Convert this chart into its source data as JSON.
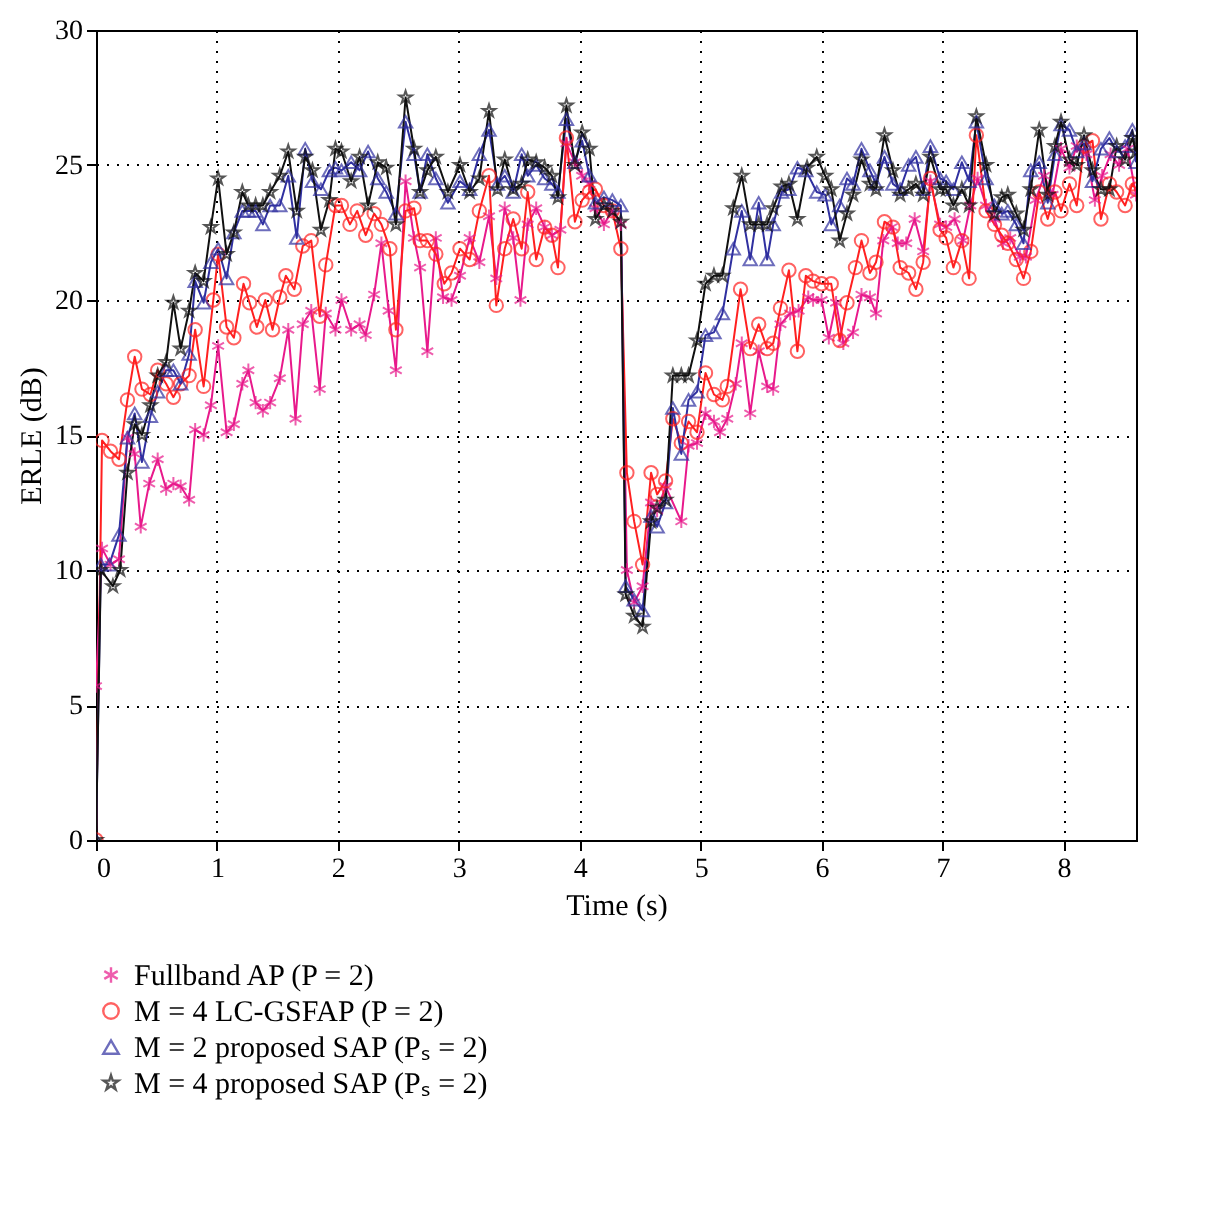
{
  "chart_data": {
    "type": "line",
    "xlabel": "Time (s)",
    "ylabel": "ERLE (dB)",
    "xlim": [
      0,
      8.6
    ],
    "xticks": [
      0,
      1,
      2,
      3,
      4,
      5,
      6,
      7,
      8
    ],
    "ylim": [
      0,
      30
    ],
    "yticks": [
      0,
      5,
      10,
      15,
      20,
      25,
      30
    ],
    "grid": true,
    "legend": "bottom",
    "line_style": "solid",
    "series": [
      {
        "name": "Fullband AP (P = 2)",
        "color": "#e8198b",
        "marker": "cross",
        "x": [
          0,
          0.05,
          0.12,
          0.19,
          0.26,
          0.32,
          0.37,
          0.44,
          0.51,
          0.58,
          0.64,
          0.7,
          0.77,
          0.82,
          0.89,
          0.95,
          1.01,
          1.08,
          1.14,
          1.21,
          1.26,
          1.32,
          1.38,
          1.44,
          1.52,
          1.59,
          1.65,
          1.71,
          1.78,
          1.85,
          1.9,
          1.98,
          2.03,
          2.11,
          2.18,
          2.23,
          2.3,
          2.36,
          2.42,
          2.48,
          2.56,
          2.63,
          2.68,
          2.74,
          2.81,
          2.87,
          2.94,
          3.01,
          3.09,
          3.17,
          3.25,
          3.31,
          3.38,
          3.45,
          3.51,
          3.57,
          3.64,
          3.71,
          3.77,
          3.84,
          3.89,
          3.96,
          4.02,
          4.08,
          4.13,
          4.2,
          4.27,
          4.34,
          4.39,
          4.45,
          4.52,
          4.59,
          4.64,
          4.71,
          4.84,
          4.9,
          4.97,
          5.04,
          5.11,
          5.16,
          5.22,
          5.29,
          5.34,
          5.41,
          5.48,
          5.55,
          5.6,
          5.66,
          5.74,
          5.81,
          5.89,
          5.93,
          6.0,
          6.06,
          6.12,
          6.18,
          6.26,
          6.33,
          6.4,
          6.45,
          6.51,
          6.58,
          6.63,
          6.7,
          6.77,
          6.84,
          6.9,
          6.98,
          7.03,
          7.1,
          7.17,
          7.23,
          7.29,
          7.36,
          7.43,
          7.5,
          7.56,
          7.64,
          7.69,
          7.77,
          7.84,
          7.91,
          7.98,
          8.05,
          8.11,
          8.19,
          8.26,
          8.32,
          8.39,
          8.46,
          8.53,
          8.6
        ],
        "values": [
          5.7,
          10.8,
          10.2,
          10.4,
          14.9,
          14.3,
          11.6,
          13.2,
          14.1,
          13,
          13.2,
          13.1,
          12.6,
          15.2,
          15,
          16.1,
          18.3,
          15.1,
          15.4,
          16.9,
          17.4,
          16.2,
          15.9,
          16.2,
          17.1,
          18.9,
          15.6,
          19.1,
          19.6,
          16.7,
          19.5,
          18.9,
          20,
          18.9,
          19.1,
          18.7,
          20.2,
          22.1,
          19.6,
          17.4,
          24.4,
          22.3,
          21.2,
          18.1,
          22.3,
          20.1,
          20,
          20.9,
          22.3,
          21.4,
          23.1,
          20.8,
          23.4,
          22.3,
          20,
          22.8,
          23.4,
          22.7,
          22.4,
          22.6,
          25.8,
          25.1,
          24.6,
          24.3,
          23.4,
          22.8,
          23.3,
          22.8,
          10,
          8.8,
          9.4,
          12.5,
          12.2,
          13.1,
          11.8,
          14.6,
          14.7,
          15.8,
          15.5,
          15.1,
          15.6,
          16.9,
          18.4,
          15.8,
          18.1,
          16.8,
          16.7,
          19.1,
          19.5,
          19.6,
          20.1,
          20,
          20,
          18.6,
          19.9,
          18.4,
          18.8,
          20.2,
          20.1,
          19.5,
          22.2,
          22.7,
          22.1,
          22.1,
          23,
          21.8,
          24.4,
          22.8,
          22.7,
          23,
          22.2,
          23.5,
          24.5,
          23.5,
          23,
          22.1,
          22.3,
          21.6,
          21.6,
          23.7,
          24.6,
          23.9,
          25.6,
          24.9,
          25.7,
          25.4,
          23.7,
          24.6,
          25.4,
          25,
          25.6,
          23.9
        ]
      },
      {
        "name": "M = 4 LC-GSFAP (P = 2)",
        "color": "#ff2020",
        "marker": "circle",
        "x": [
          0,
          0.05,
          0.12,
          0.19,
          0.26,
          0.32,
          0.38,
          0.45,
          0.51,
          0.58,
          0.64,
          0.7,
          0.77,
          0.82,
          0.89,
          0.97,
          1.01,
          1.08,
          1.14,
          1.22,
          1.27,
          1.33,
          1.4,
          1.46,
          1.52,
          1.57,
          1.64,
          1.71,
          1.78,
          1.85,
          1.9,
          1.98,
          2.03,
          2.1,
          2.16,
          2.23,
          2.3,
          2.36,
          2.43,
          2.48,
          2.56,
          2.63,
          2.68,
          2.74,
          2.81,
          2.88,
          2.94,
          3.01,
          3.09,
          3.17,
          3.25,
          3.31,
          3.38,
          3.45,
          3.52,
          3.57,
          3.64,
          3.71,
          3.77,
          3.82,
          3.89,
          3.96,
          4.02,
          4.08,
          4.13,
          4.2,
          4.27,
          4.34,
          4.39,
          4.45,
          4.52,
          4.59,
          4.64,
          4.71,
          4.77,
          4.84,
          4.9,
          4.97,
          5.04,
          5.11,
          5.18,
          5.22,
          5.33,
          5.41,
          5.48,
          5.55,
          5.6,
          5.66,
          5.73,
          5.8,
          5.87,
          5.93,
          6.0,
          6.08,
          6.15,
          6.21,
          6.28,
          6.33,
          6.4,
          6.45,
          6.52,
          6.59,
          6.65,
          6.72,
          6.78,
          6.84,
          6.9,
          6.98,
          7.03,
          7.09,
          7.16,
          7.22,
          7.28,
          7.36,
          7.43,
          7.49,
          7.54,
          7.61,
          7.67,
          7.73,
          7.8,
          7.87,
          7.93,
          7.98,
          8.05,
          8.11,
          8.17,
          8.24,
          8.31,
          8.38,
          8.44,
          8.51,
          8.57,
          8.6
        ],
        "values": [
          0,
          14.8,
          14.4,
          14.1,
          16.3,
          17.9,
          16.7,
          16.5,
          17.4,
          16.9,
          16.4,
          16.9,
          17.2,
          18.9,
          16.8,
          20,
          21.7,
          19,
          18.6,
          20.6,
          19.9,
          19,
          20,
          18.9,
          20.1,
          20.9,
          20.4,
          22,
          22.2,
          19.4,
          21.3,
          23.5,
          23.5,
          22.8,
          23.3,
          22.4,
          23.2,
          22.8,
          21.9,
          18.9,
          23.3,
          23.4,
          22.2,
          22.2,
          21.7,
          20.6,
          21,
          21.9,
          21.5,
          23.3,
          24.6,
          19.8,
          21.9,
          23,
          21.9,
          24,
          21.5,
          22.7,
          22.4,
          21.2,
          26,
          22.9,
          23.7,
          24,
          24.1,
          23.5,
          23.3,
          21.9,
          13.6,
          11.8,
          10.2,
          13.6,
          12.8,
          13.3,
          15.6,
          14.7,
          15.5,
          15.1,
          17.3,
          16.5,
          16.3,
          16.8,
          20.4,
          18.2,
          19.1,
          18.2,
          18.4,
          19.7,
          21.1,
          18.1,
          20.9,
          20.7,
          20.6,
          20.6,
          18.5,
          19.9,
          21.2,
          22.2,
          21,
          21.4,
          22.9,
          22.7,
          21.2,
          21,
          20.4,
          21.4,
          24.5,
          22.6,
          22.3,
          21.2,
          22.2,
          20.8,
          26.1,
          23.3,
          22.8,
          22.4,
          22.1,
          21.5,
          20.8,
          21.8,
          24,
          23,
          24,
          23.3,
          24.3,
          23.5,
          25.7,
          25.9,
          23,
          24.3,
          24,
          23.5,
          24.3,
          24.1
        ]
      },
      {
        "name": "M = 2 proposed SAP (Pₛ = 2)",
        "color": "#3030a0",
        "marker": "triangle",
        "x": [
          0,
          0.04,
          0.11,
          0.19,
          0.26,
          0.32,
          0.38,
          0.45,
          0.51,
          0.58,
          0.64,
          0.7,
          0.77,
          0.82,
          0.89,
          0.95,
          1.01,
          1.08,
          1.14,
          1.21,
          1.26,
          1.32,
          1.38,
          1.44,
          1.52,
          1.59,
          1.66,
          1.73,
          1.79,
          1.86,
          1.93,
          1.98,
          2.03,
          2.11,
          2.18,
          2.25,
          2.33,
          2.4,
          2.48,
          2.56,
          2.63,
          2.68,
          2.74,
          2.81,
          2.91,
          3.01,
          3.09,
          3.17,
          3.25,
          3.32,
          3.38,
          3.45,
          3.52,
          3.57,
          3.64,
          3.71,
          3.77,
          3.82,
          3.89,
          3.96,
          4.02,
          4.08,
          4.13,
          4.2,
          4.27,
          4.34,
          4.38,
          4.45,
          4.52,
          4.59,
          4.64,
          4.71,
          4.77,
          4.84,
          4.9,
          4.97,
          5.04,
          5.11,
          5.18,
          5.27,
          5.34,
          5.41,
          5.48,
          5.55,
          5.6,
          5.67,
          5.73,
          5.8,
          5.87,
          5.96,
          6.03,
          6.08,
          6.15,
          6.21,
          6.26,
          6.33,
          6.4,
          6.45,
          6.52,
          6.59,
          6.65,
          6.72,
          6.78,
          6.84,
          6.9,
          6.98,
          7.03,
          7.09,
          7.16,
          7.22,
          7.28,
          7.36,
          7.43,
          7.49,
          7.54,
          7.61,
          7.67,
          7.73,
          7.8,
          7.87,
          7.93,
          7.98,
          8.05,
          8.11,
          8.17,
          8.24,
          8.31,
          8.38,
          8.44,
          8.51,
          8.57,
          8.6
        ],
        "values": [
          0,
          10.2,
          10.2,
          11.3,
          14.9,
          15.8,
          14,
          15.7,
          16.6,
          17.4,
          17.4,
          16.9,
          18,
          20.7,
          19.9,
          21.4,
          21.9,
          20.8,
          22.5,
          23.3,
          23.3,
          23.3,
          22.8,
          23.5,
          23.5,
          24.6,
          22.3,
          25.6,
          24.4,
          24.1,
          24.8,
          24.9,
          24.8,
          25.1,
          24.8,
          25.5,
          24.5,
          24,
          23.2,
          26.6,
          25.4,
          24,
          25.4,
          24.5,
          23.6,
          24.4,
          24.1,
          25.4,
          26.3,
          24.3,
          24.6,
          24,
          25.4,
          24.6,
          25,
          24.5,
          24.3,
          24,
          26.7,
          25.1,
          25.9,
          24.6,
          23.6,
          23.8,
          23.7,
          23.5,
          9.4,
          8.9,
          8.5,
          12,
          11.6,
          12.5,
          16,
          14.3,
          16.3,
          16.6,
          18.7,
          18.8,
          19.5,
          21.9,
          23.3,
          21.5,
          23.6,
          21.5,
          22.8,
          24,
          24.1,
          24.9,
          24.8,
          24,
          23.9,
          22.8,
          23.5,
          24.5,
          24.3,
          25.6,
          24.8,
          24.3,
          25.3,
          24.3,
          24.1,
          25,
          25.3,
          24.1,
          25.7,
          24.5,
          24.4,
          24.1,
          25.1,
          24.4,
          26.6,
          24.5,
          23.5,
          23.2,
          23.3,
          22.8,
          22.1,
          24.8,
          25.1,
          23.6,
          25.4,
          26.5,
          26.3,
          25.5,
          25.8,
          24.4,
          25.6,
          26,
          25.5,
          25.7,
          26.3,
          25.1
        ]
      },
      {
        "name": "M = 4 proposed SAP (Pₛ = 2)",
        "color": "#101010",
        "marker": "star",
        "x": [
          0,
          0.04,
          0.14,
          0.2,
          0.26,
          0.32,
          0.38,
          0.45,
          0.51,
          0.58,
          0.64,
          0.7,
          0.77,
          0.82,
          0.89,
          0.95,
          1.01,
          1.08,
          1.14,
          1.21,
          1.26,
          1.32,
          1.38,
          1.44,
          1.52,
          1.59,
          1.66,
          1.73,
          1.79,
          1.86,
          1.93,
          1.98,
          2.03,
          2.11,
          2.18,
          2.25,
          2.33,
          2.4,
          2.48,
          2.56,
          2.63,
          2.68,
          2.74,
          2.81,
          2.91,
          3.01,
          3.09,
          3.17,
          3.25,
          3.32,
          3.38,
          3.45,
          3.52,
          3.57,
          3.64,
          3.71,
          3.77,
          3.82,
          3.89,
          3.96,
          4.02,
          4.08,
          4.13,
          4.2,
          4.27,
          4.34,
          4.38,
          4.45,
          4.52,
          4.59,
          4.64,
          4.71,
          4.77,
          4.84,
          4.9,
          4.97,
          5.04,
          5.11,
          5.18,
          5.27,
          5.34,
          5.41,
          5.48,
          5.55,
          5.6,
          5.67,
          5.73,
          5.8,
          5.88,
          5.96,
          6.03,
          6.08,
          6.15,
          6.21,
          6.26,
          6.33,
          6.4,
          6.45,
          6.52,
          6.59,
          6.65,
          6.72,
          6.78,
          6.84,
          6.9,
          6.98,
          7.03,
          7.09,
          7.16,
          7.22,
          7.28,
          7.36,
          7.43,
          7.49,
          7.54,
          7.61,
          7.67,
          7.73,
          7.8,
          7.87,
          7.93,
          7.98,
          8.05,
          8.11,
          8.17,
          8.24,
          8.31,
          8.38,
          8.44,
          8.51,
          8.57,
          8.6
        ],
        "values": [
          0,
          10,
          9.4,
          10,
          13.6,
          15.4,
          15,
          16.1,
          17.2,
          17.7,
          19.9,
          18.2,
          19.6,
          21,
          20.7,
          22.7,
          24.5,
          21.7,
          22.5,
          24,
          23.5,
          23.5,
          23.5,
          24,
          24.6,
          25.5,
          23.3,
          25.3,
          24.8,
          22.6,
          23.7,
          25.6,
          25.5,
          24.4,
          25.3,
          23.5,
          25.1,
          24.9,
          22.8,
          27.5,
          25.6,
          24,
          24.8,
          25.3,
          24,
          25,
          24,
          24.5,
          27,
          24.1,
          25.2,
          24.1,
          24.3,
          25.2,
          25.1,
          24.9,
          24.6,
          23.8,
          27.2,
          25,
          26.2,
          25.6,
          23,
          23.5,
          23.3,
          22.9,
          9.1,
          8.3,
          7.9,
          11.8,
          12.3,
          12.6,
          17.2,
          17.2,
          17.2,
          18.5,
          20.6,
          20.9,
          20.9,
          23.4,
          24.6,
          22.8,
          22.8,
          22.8,
          23.4,
          24.2,
          24.3,
          23,
          24.9,
          25.3,
          24.6,
          24.1,
          22.2,
          23.2,
          23.9,
          25.2,
          24.3,
          24.1,
          26.1,
          24.8,
          23.9,
          24.1,
          24.3,
          23.9,
          25.3,
          24.1,
          24.1,
          23.5,
          24.1,
          23.5,
          26.8,
          25,
          23.2,
          23.8,
          23.9,
          23.2,
          22.6,
          24.1,
          26.3,
          23.9,
          25.7,
          26.6,
          25.2,
          25,
          26.1,
          24.8,
          24.1,
          24.1,
          25.7,
          25.2,
          26,
          25.5
        ]
      }
    ]
  }
}
